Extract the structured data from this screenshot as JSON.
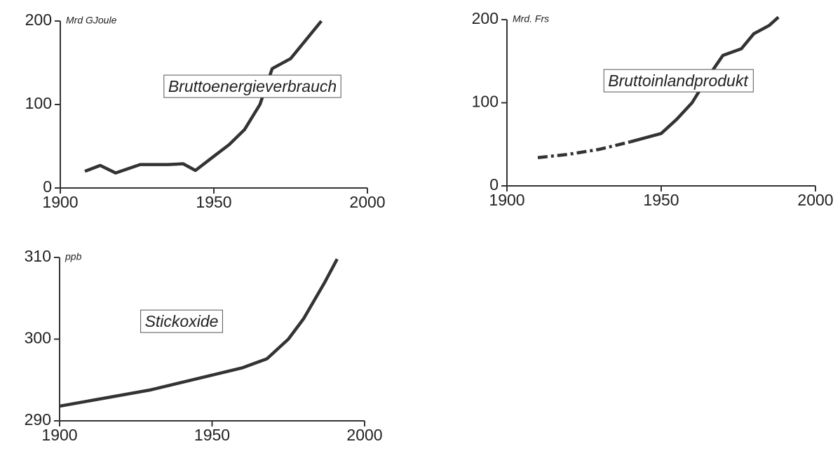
{
  "chart_data": [
    {
      "type": "line",
      "title": "Bruttoenergieverbrauch",
      "unit": "Mrd GJoule",
      "color": "#333333",
      "x": [
        1908,
        1913,
        1918,
        1926,
        1935,
        1940,
        1944,
        1950,
        1955,
        1960,
        1965,
        1969,
        1975,
        1985
      ],
      "series": [
        {
          "values": [
            20,
            27,
            18,
            28,
            28,
            29,
            21,
            38,
            52,
            70,
            100,
            143,
            155,
            200
          ],
          "style": "solid"
        }
      ],
      "xlim": [
        1900,
        2000
      ],
      "xticks": [
        1900,
        1950,
        2000
      ],
      "ylim": [
        0,
        200
      ],
      "yticks": [
        0,
        100,
        200
      ]
    },
    {
      "type": "line",
      "title": "Bruttoinlandprodukt",
      "unit": "Mrd. Frs",
      "color": "#333333",
      "x": [
        1910,
        1920,
        1930,
        1940,
        1950,
        1955,
        1960,
        1965,
        1970,
        1976,
        1980,
        1985,
        1988
      ],
      "series": [
        {
          "values": [
            34,
            38,
            44,
            53,
            null,
            null,
            null,
            null,
            null,
            null,
            null,
            null,
            null
          ],
          "style": "dashdot"
        },
        {
          "values": [
            null,
            null,
            null,
            53,
            63,
            80,
            100,
            130,
            157,
            165,
            183,
            193,
            203
          ],
          "style": "solid"
        }
      ],
      "xlim": [
        1900,
        2000
      ],
      "xticks": [
        1900,
        1950,
        2000
      ],
      "ylim": [
        0,
        200
      ],
      "yticks": [
        0,
        100,
        200
      ]
    },
    {
      "type": "line",
      "title": "Stickoxide",
      "unit": "ppb",
      "color": "#333333",
      "x": [
        1900,
        1930,
        1960,
        1968,
        1975,
        1980,
        1987,
        1991
      ],
      "series": [
        {
          "values": [
            291.8,
            293.8,
            296.5,
            297.6,
            300,
            302.5,
            307,
            309.8
          ],
          "style": "solid"
        }
      ],
      "xlim": [
        1900,
        2000
      ],
      "xticks": [
        1900,
        1950,
        2000
      ],
      "ylim": [
        290,
        310
      ],
      "yticks": [
        290,
        300,
        310
      ]
    }
  ]
}
